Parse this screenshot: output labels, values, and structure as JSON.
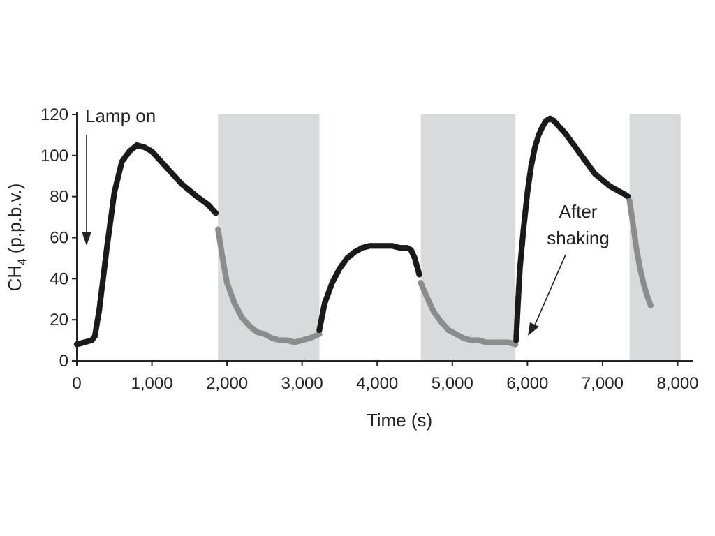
{
  "chart_data": {
    "type": "scatter",
    "title": "",
    "xlabel": "Time (s)",
    "ylabel_main": "CH",
    "ylabel_sub": "4",
    "ylabel_unit": " (p.p.b.v.)",
    "xlim": [
      0,
      8200
    ],
    "ylim": [
      0,
      120
    ],
    "x_ticks": [
      0,
      1000,
      2000,
      3000,
      4000,
      5000,
      6000,
      7000,
      8000
    ],
    "x_tick_labels": [
      "0",
      "1,000",
      "2,000",
      "3,000",
      "4,000",
      "5,000",
      "6,000",
      "7,000",
      "8,000"
    ],
    "y_ticks": [
      0,
      20,
      40,
      60,
      80,
      100,
      120
    ],
    "y_tick_labels": [
      "0",
      "20",
      "40",
      "60",
      "80",
      "100",
      "120"
    ],
    "grid": false,
    "legend": "none",
    "shaded_intervals": [
      [
        1880,
        3230
      ],
      [
        4580,
        5840
      ],
      [
        7360,
        8040
      ]
    ],
    "colors": {
      "light_on": "#1a1a1a",
      "light_off": "#8c8c8c",
      "shading": "#d9dadb",
      "axis": "#222222"
    },
    "series": [
      {
        "values": [
          [
            0,
            8
          ],
          [
            100,
            9
          ],
          [
            200,
            10
          ],
          [
            240,
            12
          ],
          [
            300,
            25
          ],
          [
            400,
            55
          ],
          [
            500,
            82
          ],
          [
            600,
            97
          ],
          [
            700,
            102
          ],
          [
            800,
            105
          ],
          [
            900,
            104
          ],
          [
            1000,
            102
          ],
          [
            1200,
            94
          ],
          [
            1400,
            86
          ],
          [
            1600,
            80
          ],
          [
            1750,
            76
          ],
          [
            1800,
            74
          ],
          [
            1850,
            72
          ]
        ]
      },
      {
        "values": [
          [
            1880,
            64
          ],
          [
            1950,
            48
          ],
          [
            2000,
            38
          ],
          [
            2100,
            28
          ],
          [
            2200,
            21
          ],
          [
            2300,
            17
          ],
          [
            2400,
            14
          ],
          [
            2500,
            13
          ],
          [
            2600,
            11
          ],
          [
            2700,
            10
          ],
          [
            2800,
            10
          ],
          [
            2900,
            9
          ],
          [
            3000,
            10
          ],
          [
            3100,
            11
          ],
          [
            3230,
            13
          ]
        ]
      },
      {
        "values": [
          [
            3230,
            15
          ],
          [
            3300,
            28
          ],
          [
            3400,
            38
          ],
          [
            3500,
            45
          ],
          [
            3600,
            50
          ],
          [
            3700,
            53
          ],
          [
            3800,
            55
          ],
          [
            3900,
            56
          ],
          [
            4000,
            56
          ],
          [
            4100,
            56
          ],
          [
            4200,
            56
          ],
          [
            4300,
            55
          ],
          [
            4400,
            55
          ],
          [
            4450,
            54
          ],
          [
            4500,
            50
          ],
          [
            4560,
            42
          ]
        ]
      },
      {
        "values": [
          [
            4580,
            38
          ],
          [
            4650,
            32
          ],
          [
            4750,
            24
          ],
          [
            4850,
            19
          ],
          [
            4950,
            15
          ],
          [
            5050,
            13
          ],
          [
            5150,
            11
          ],
          [
            5250,
            10
          ],
          [
            5350,
            10
          ],
          [
            5450,
            9
          ],
          [
            5550,
            9
          ],
          [
            5650,
            9
          ],
          [
            5750,
            9
          ],
          [
            5840,
            8
          ]
        ]
      },
      {
        "values": [
          [
            5850,
            10
          ],
          [
            5870,
            25
          ],
          [
            5900,
            45
          ],
          [
            5950,
            65
          ],
          [
            6000,
            82
          ],
          [
            6050,
            95
          ],
          [
            6100,
            104
          ],
          [
            6150,
            110
          ],
          [
            6200,
            114
          ],
          [
            6250,
            117
          ],
          [
            6300,
            118
          ],
          [
            6350,
            117
          ],
          [
            6400,
            115
          ],
          [
            6500,
            111
          ],
          [
            6600,
            106
          ],
          [
            6700,
            101
          ],
          [
            6800,
            96
          ],
          [
            6900,
            91
          ],
          [
            7000,
            88
          ],
          [
            7100,
            85
          ],
          [
            7200,
            83
          ],
          [
            7300,
            81
          ],
          [
            7340,
            80
          ]
        ]
      },
      {
        "values": [
          [
            7360,
            78
          ],
          [
            7400,
            68
          ],
          [
            7450,
            55
          ],
          [
            7500,
            45
          ],
          [
            7550,
            37
          ],
          [
            7600,
            31
          ],
          [
            7640,
            27
          ]
        ]
      }
    ],
    "annotations": [
      {
        "lines": [
          "Lamp on"
        ]
      },
      {
        "lines": [
          "After",
          "shaking"
        ]
      }
    ]
  }
}
